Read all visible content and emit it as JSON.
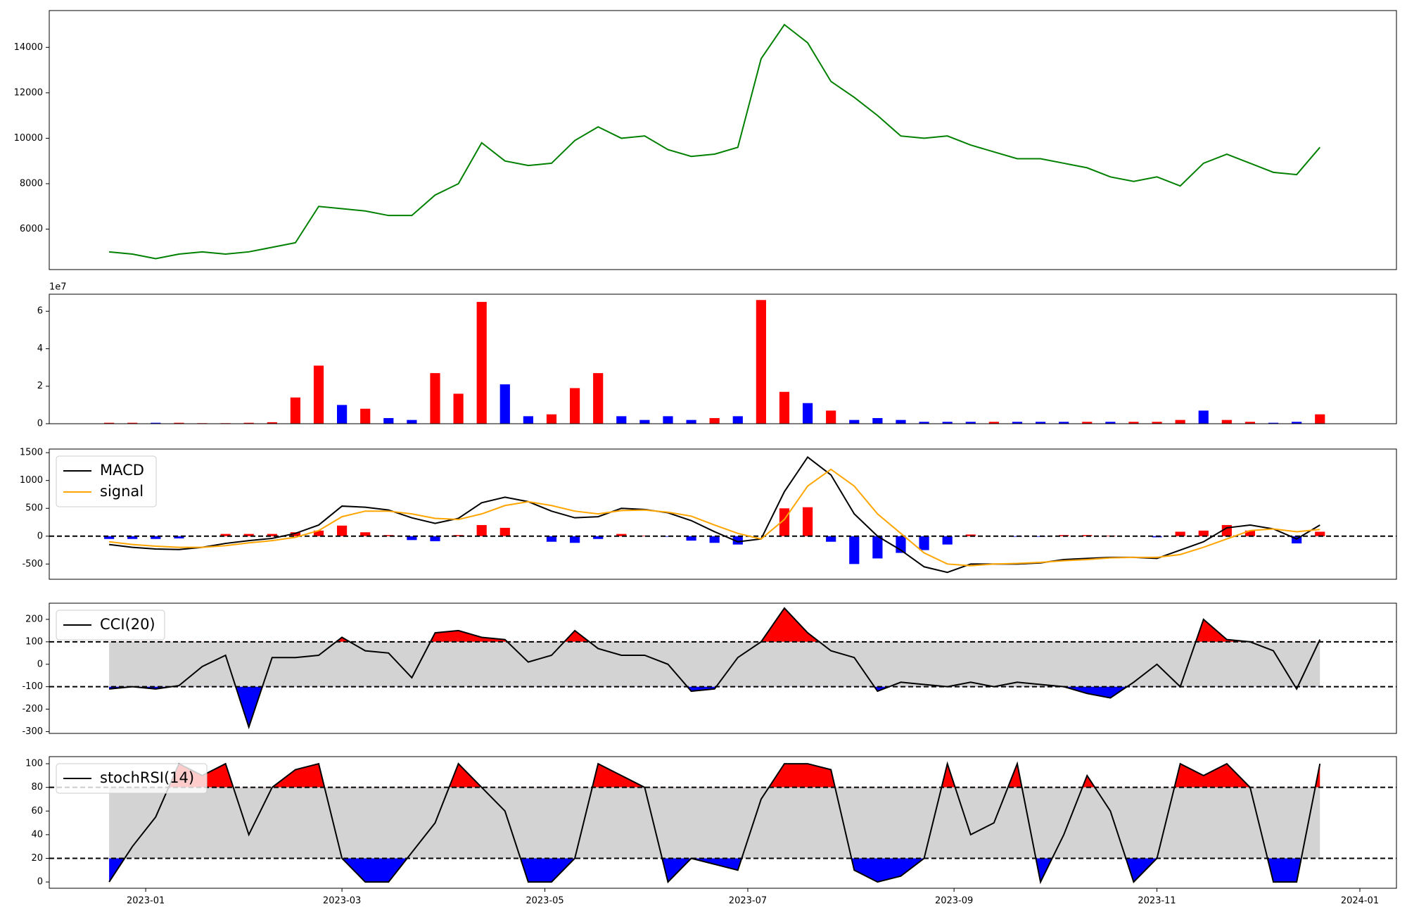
{
  "chart_data": [
    {
      "type": "line",
      "color": "#008000",
      "x": [
        "2022-12-21",
        "2022-12-28",
        "2023-01-04",
        "2023-01-11",
        "2023-01-18",
        "2023-01-25",
        "2023-02-01",
        "2023-02-08",
        "2023-02-15",
        "2023-02-22",
        "2023-03-01",
        "2023-03-08",
        "2023-03-15",
        "2023-03-22",
        "2023-03-29",
        "2023-04-05",
        "2023-04-12",
        "2023-04-19",
        "2023-04-26",
        "2023-05-03",
        "2023-05-10",
        "2023-05-17",
        "2023-05-24",
        "2023-05-31",
        "2023-06-07",
        "2023-06-14",
        "2023-06-21",
        "2023-06-28",
        "2023-07-05",
        "2023-07-12",
        "2023-07-19",
        "2023-07-26",
        "2023-08-02",
        "2023-08-09",
        "2023-08-16",
        "2023-08-23",
        "2023-08-30",
        "2023-09-06",
        "2023-09-13",
        "2023-09-20",
        "2023-09-27",
        "2023-10-04",
        "2023-10-11",
        "2023-10-18",
        "2023-10-25",
        "2023-11-01",
        "2023-11-08",
        "2023-11-15",
        "2023-11-22",
        "2023-11-29",
        "2023-12-06",
        "2023-12-13",
        "2023-12-20"
      ],
      "values": [
        5000,
        4900,
        4700,
        4900,
        5000,
        4900,
        5000,
        5200,
        5400,
        7000,
        6900,
        6800,
        6600,
        6600,
        7500,
        8000,
        9800,
        9000,
        8800,
        8900,
        9900,
        10500,
        10000,
        10100,
        9500,
        9200,
        9300,
        9600,
        13500,
        15000,
        14200,
        12500,
        11800,
        11000,
        10100,
        10000,
        10100,
        9700,
        9400,
        9100,
        9100,
        8900,
        8700,
        8300,
        8100,
        8300,
        7900,
        8900,
        9300,
        8900,
        8500,
        8400,
        9600
      ],
      "xlim": [
        "2022-12-03",
        "2024-01-12"
      ],
      "ylim": [
        4220,
        15620
      ],
      "yticks": [
        6000,
        8000,
        10000,
        12000,
        14000
      ]
    },
    {
      "type": "bar",
      "offset_text": "1e7",
      "x": [
        "2022-12-21",
        "2022-12-28",
        "2023-01-04",
        "2023-01-11",
        "2023-01-18",
        "2023-01-25",
        "2023-02-01",
        "2023-02-08",
        "2023-02-15",
        "2023-02-22",
        "2023-03-01",
        "2023-03-08",
        "2023-03-15",
        "2023-03-22",
        "2023-03-29",
        "2023-04-05",
        "2023-04-12",
        "2023-04-19",
        "2023-04-26",
        "2023-05-03",
        "2023-05-10",
        "2023-05-17",
        "2023-05-24",
        "2023-05-31",
        "2023-06-07",
        "2023-06-14",
        "2023-06-21",
        "2023-06-28",
        "2023-07-05",
        "2023-07-12",
        "2023-07-19",
        "2023-07-26",
        "2023-08-02",
        "2023-08-09",
        "2023-08-16",
        "2023-08-23",
        "2023-08-30",
        "2023-09-06",
        "2023-09-13",
        "2023-09-20",
        "2023-09-27",
        "2023-10-04",
        "2023-10-11",
        "2023-10-18",
        "2023-10-25",
        "2023-11-01",
        "2023-11-08",
        "2023-11-15",
        "2023-11-22",
        "2023-11-29",
        "2023-12-06",
        "2023-12-13",
        "2023-12-20"
      ],
      "values": [
        0.05,
        0.05,
        0.05,
        0.05,
        0.03,
        0.03,
        0.05,
        0.08,
        1.4,
        3.1,
        1.0,
        0.8,
        0.3,
        0.2,
        2.7,
        1.6,
        6.5,
        2.1,
        0.4,
        0.5,
        1.9,
        2.7,
        0.4,
        0.2,
        0.4,
        0.2,
        0.3,
        0.4,
        6.6,
        1.7,
        1.1,
        0.7,
        0.2,
        0.3,
        0.2,
        0.1,
        0.1,
        0.1,
        0.1,
        0.1,
        0.1,
        0.1,
        0.1,
        0.1,
        0.1,
        0.1,
        0.2,
        0.7,
        0.2,
        0.1,
        0.05,
        0.1,
        0.5
      ],
      "colors": [
        "#ff0000",
        "#ff0000",
        "#0000ff",
        "#ff0000",
        "#ff0000",
        "#ff0000",
        "#ff0000",
        "#ff0000",
        "#ff0000",
        "#ff0000",
        "#0000ff",
        "#ff0000",
        "#0000ff",
        "#0000ff",
        "#ff0000",
        "#ff0000",
        "#ff0000",
        "#0000ff",
        "#0000ff",
        "#ff0000",
        "#ff0000",
        "#ff0000",
        "#0000ff",
        "#0000ff",
        "#0000ff",
        "#0000ff",
        "#ff0000",
        "#0000ff",
        "#ff0000",
        "#ff0000",
        "#0000ff",
        "#ff0000",
        "#0000ff",
        "#0000ff",
        "#0000ff",
        "#0000ff",
        "#0000ff",
        "#0000ff",
        "#ff0000",
        "#0000ff",
        "#0000ff",
        "#0000ff",
        "#ff0000",
        "#0000ff",
        "#ff0000",
        "#ff0000",
        "#ff0000",
        "#0000ff",
        "#ff0000",
        "#ff0000",
        "#0000ff",
        "#0000ff",
        "#ff0000"
      ],
      "xlim": [
        "2022-12-03",
        "2024-01-12"
      ],
      "ylim": [
        0,
        6.91
      ],
      "yticks": [
        0,
        2,
        4,
        6
      ]
    },
    {
      "type": "line",
      "legend": "upper left",
      "x": [
        "2022-12-21",
        "2022-12-28",
        "2023-01-04",
        "2023-01-11",
        "2023-01-18",
        "2023-01-25",
        "2023-02-01",
        "2023-02-08",
        "2023-02-15",
        "2023-02-22",
        "2023-03-01",
        "2023-03-08",
        "2023-03-15",
        "2023-03-22",
        "2023-03-29",
        "2023-04-05",
        "2023-04-12",
        "2023-04-19",
        "2023-04-26",
        "2023-05-03",
        "2023-05-10",
        "2023-05-17",
        "2023-05-24",
        "2023-05-31",
        "2023-06-07",
        "2023-06-14",
        "2023-06-21",
        "2023-06-28",
        "2023-07-05",
        "2023-07-12",
        "2023-07-19",
        "2023-07-26",
        "2023-08-02",
        "2023-08-09",
        "2023-08-16",
        "2023-08-23",
        "2023-08-30",
        "2023-09-06",
        "2023-09-13",
        "2023-09-20",
        "2023-09-27",
        "2023-10-04",
        "2023-10-11",
        "2023-10-18",
        "2023-10-25",
        "2023-11-01",
        "2023-11-08",
        "2023-11-15",
        "2023-11-22",
        "2023-11-29",
        "2023-12-06",
        "2023-12-13",
        "2023-12-20"
      ],
      "series": [
        {
          "name": "MACD",
          "color": "#000000",
          "values": [
            -150,
            -200,
            -230,
            -240,
            -200,
            -130,
            -80,
            -40,
            50,
            200,
            540,
            520,
            470,
            330,
            230,
            320,
            600,
            700,
            620,
            450,
            330,
            350,
            500,
            480,
            420,
            280,
            80,
            -100,
            -50,
            800,
            1420,
            1100,
            400,
            0,
            -250,
            -550,
            -650,
            -500,
            -500,
            -500,
            -480,
            -420,
            -400,
            -380,
            -380,
            -400,
            -250,
            -100,
            150,
            200,
            130,
            -50,
            200
          ]
        },
        {
          "name": "signal",
          "color": "#ffa500",
          "values": [
            -100,
            -150,
            -180,
            -200,
            -200,
            -170,
            -120,
            -80,
            -20,
            100,
            350,
            450,
            450,
            400,
            320,
            300,
            400,
            550,
            620,
            550,
            450,
            400,
            460,
            470,
            430,
            360,
            200,
            50,
            -50,
            300,
            900,
            1200,
            900,
            400,
            50,
            -300,
            -500,
            -530,
            -500,
            -490,
            -470,
            -440,
            -420,
            -390,
            -380,
            -380,
            -330,
            -200,
            -50,
            100,
            130,
            80,
            120
          ]
        }
      ],
      "histogram": {
        "positive_color": "#ff0000",
        "negative_color": "#0000ff",
        "values": [
          -50,
          -50,
          -50,
          -40,
          0,
          40,
          40,
          40,
          70,
          100,
          190,
          70,
          20,
          -70,
          -90,
          20,
          200,
          150,
          0,
          -100,
          -120,
          -50,
          40,
          10,
          -10,
          -80,
          -120,
          -150,
          0,
          500,
          520,
          -100,
          -500,
          -400,
          -300,
          -250,
          -150,
          30,
          0,
          -10,
          -10,
          20,
          20,
          10,
          0,
          -20,
          80,
          100,
          200,
          100,
          0,
          -130,
          80
        ]
      },
      "hlines": [
        0
      ],
      "xlim": [
        "2022-12-03",
        "2024-01-12"
      ],
      "ylim": [
        -774,
        1565
      ],
      "yticks": [
        -500,
        0,
        500,
        1000,
        1500
      ]
    },
    {
      "type": "line",
      "legend": "upper left",
      "x": [
        "2022-12-21",
        "2022-12-28",
        "2023-01-04",
        "2023-01-11",
        "2023-01-18",
        "2023-01-25",
        "2023-02-01",
        "2023-02-08",
        "2023-02-15",
        "2023-02-22",
        "2023-03-01",
        "2023-03-08",
        "2023-03-15",
        "2023-03-22",
        "2023-03-29",
        "2023-04-05",
        "2023-04-12",
        "2023-04-19",
        "2023-04-26",
        "2023-05-03",
        "2023-05-10",
        "2023-05-17",
        "2023-05-24",
        "2023-05-31",
        "2023-06-07",
        "2023-06-14",
        "2023-06-21",
        "2023-06-28",
        "2023-07-05",
        "2023-07-12",
        "2023-07-19",
        "2023-07-26",
        "2023-08-02",
        "2023-08-09",
        "2023-08-16",
        "2023-08-23",
        "2023-08-30",
        "2023-09-06",
        "2023-09-13",
        "2023-09-20",
        "2023-09-27",
        "2023-10-04",
        "2023-10-11",
        "2023-10-18",
        "2023-10-25",
        "2023-11-01",
        "2023-11-08",
        "2023-11-15",
        "2023-11-22",
        "2023-11-29",
        "2023-12-06",
        "2023-12-13",
        "2023-12-20"
      ],
      "series": [
        {
          "name": "CCI(20)",
          "color": "#000000",
          "values": [
            -110,
            -100,
            -110,
            -95,
            -10,
            40,
            -280,
            30,
            30,
            40,
            120,
            60,
            50,
            -60,
            140,
            150,
            120,
            110,
            10,
            40,
            150,
            70,
            40,
            40,
            0,
            -120,
            -110,
            30,
            100,
            250,
            140,
            60,
            30,
            -120,
            -80,
            -90,
            -100,
            -80,
            -100,
            -80,
            -90,
            -100,
            -130,
            -150,
            -80,
            0,
            -100,
            200,
            110,
            100,
            60,
            -110,
            110
          ]
        }
      ],
      "hlines": [
        100,
        -100
      ],
      "fills": {
        "upper": "#ff0000",
        "lower": "#0000ff",
        "band": "#d3d3d3"
      },
      "xlim": [
        "2022-12-03",
        "2024-01-12"
      ],
      "ylim": [
        -308,
        272
      ],
      "yticks": [
        -300,
        -200,
        -100,
        0,
        100,
        200
      ]
    },
    {
      "type": "line",
      "legend": "upper left",
      "x": [
        "2022-12-21",
        "2022-12-28",
        "2023-01-04",
        "2023-01-11",
        "2023-01-18",
        "2023-01-25",
        "2023-02-01",
        "2023-02-08",
        "2023-02-15",
        "2023-02-22",
        "2023-03-01",
        "2023-03-08",
        "2023-03-15",
        "2023-03-22",
        "2023-03-29",
        "2023-04-05",
        "2023-04-12",
        "2023-04-19",
        "2023-04-26",
        "2023-05-03",
        "2023-05-10",
        "2023-05-17",
        "2023-05-24",
        "2023-05-31",
        "2023-06-07",
        "2023-06-14",
        "2023-06-21",
        "2023-06-28",
        "2023-07-05",
        "2023-07-12",
        "2023-07-19",
        "2023-07-26",
        "2023-08-02",
        "2023-08-09",
        "2023-08-16",
        "2023-08-23",
        "2023-08-30",
        "2023-09-06",
        "2023-09-13",
        "2023-09-20",
        "2023-09-27",
        "2023-10-04",
        "2023-10-11",
        "2023-10-18",
        "2023-10-25",
        "2023-11-01",
        "2023-11-08",
        "2023-11-15",
        "2023-11-22",
        "2023-11-29",
        "2023-12-06",
        "2023-12-13",
        "2023-12-20"
      ],
      "series": [
        {
          "name": "stochRSI(14)",
          "color": "#000000",
          "values": [
            0,
            30,
            55,
            100,
            90,
            100,
            40,
            80,
            95,
            100,
            20,
            0,
            0,
            25,
            50,
            100,
            80,
            60,
            0,
            0,
            20,
            100,
            90,
            80,
            0,
            20,
            15,
            10,
            70,
            100,
            100,
            95,
            10,
            0,
            5,
            20,
            100,
            40,
            50,
            100,
            0,
            40,
            90,
            60,
            0,
            20,
            100,
            90,
            100,
            80,
            0,
            0,
            100
          ]
        }
      ],
      "hlines": [
        80,
        20
      ],
      "fills": {
        "upper": "#ff0000",
        "lower": "#0000ff",
        "band": "#d3d3d3"
      },
      "xlim": [
        "2022-12-03",
        "2024-01-12"
      ],
      "ylim": [
        -5.3,
        106
      ],
      "yticks": [
        0,
        20,
        40,
        60,
        80,
        100
      ],
      "xticks": [
        {
          "value": "2023-01-01",
          "label": "2023-01"
        },
        {
          "value": "2023-03-01",
          "label": "2023-03"
        },
        {
          "value": "2023-05-01",
          "label": "2023-05"
        },
        {
          "value": "2023-07-01",
          "label": "2023-07"
        },
        {
          "value": "2023-09-01",
          "label": "2023-09"
        },
        {
          "value": "2023-11-01",
          "label": "2023-11"
        },
        {
          "value": "2024-01-01",
          "label": "2024-01"
        }
      ]
    }
  ]
}
